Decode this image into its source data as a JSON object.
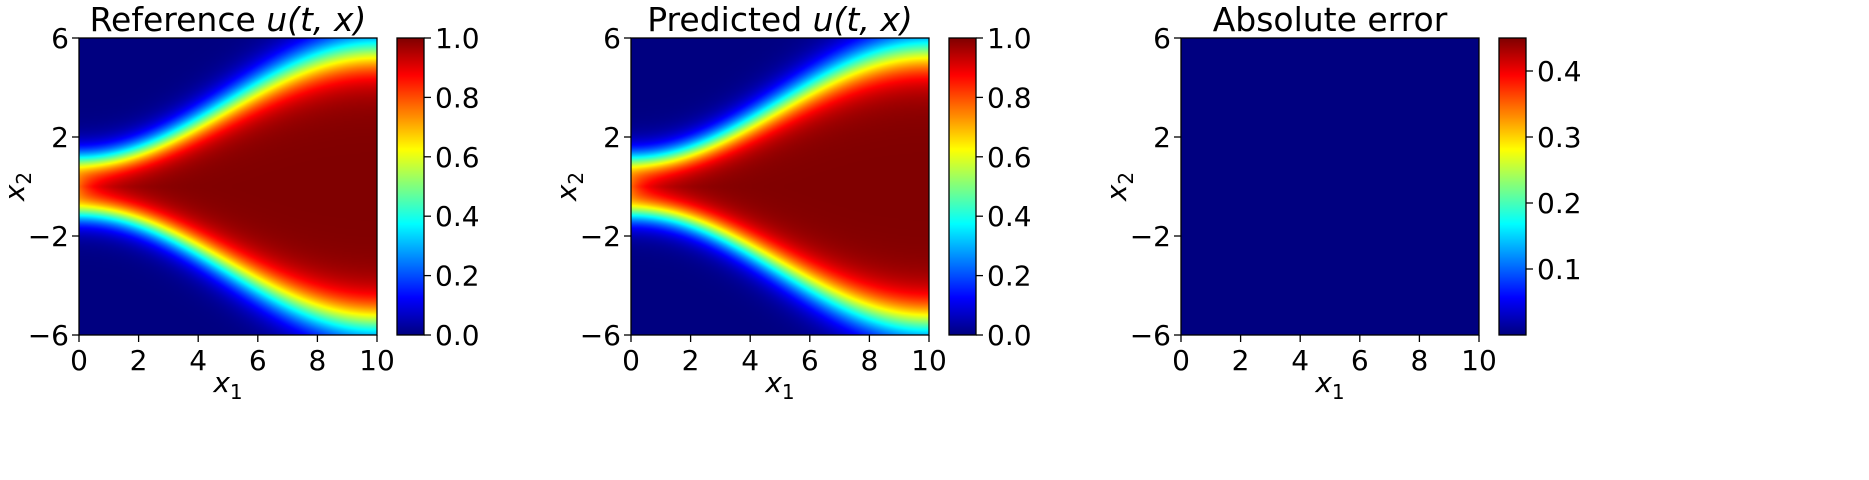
{
  "colormap": "jet",
  "chart_data": [
    {
      "type": "heatmap",
      "title": "Reference u(t, x)",
      "title_plain": "Reference ",
      "title_math": "u(t, x)",
      "xlabel": "x1",
      "ylabel": "x2",
      "xlim": [
        0,
        10
      ],
      "ylim": [
        -6,
        6
      ],
      "xticks": [
        "0",
        "2",
        "4",
        "6",
        "8",
        "10"
      ],
      "yticks": [
        "6",
        "2",
        "−2",
        "−6"
      ],
      "colorbar": {
        "range": [
          0.0,
          1.0
        ],
        "ticks": [
          "0.0",
          "0.2",
          "0.4",
          "0.6",
          "0.8",
          "1.0"
        ]
      },
      "field": "solution"
    },
    {
      "type": "heatmap",
      "title": "Predicted u(t, x)",
      "title_plain": "Predicted ",
      "title_math": "u(t, x)",
      "xlabel": "x1",
      "ylabel": "x2",
      "xlim": [
        0,
        10
      ],
      "ylim": [
        -6,
        6
      ],
      "xticks": [
        "0",
        "2",
        "4",
        "6",
        "8",
        "10"
      ],
      "yticks": [
        "6",
        "2",
        "−2",
        "−6"
      ],
      "colorbar": {
        "range": [
          0.0,
          1.0
        ],
        "ticks": [
          "0.0",
          "0.2",
          "0.4",
          "0.6",
          "0.8",
          "1.0"
        ]
      },
      "field": "solution"
    },
    {
      "type": "heatmap",
      "title": "Absolute error",
      "title_plain": "Absolute error",
      "title_math": "",
      "xlabel": "x1",
      "ylabel": "x2",
      "xlim": [
        0,
        10
      ],
      "ylim": [
        -6,
        6
      ],
      "xticks": [
        "0",
        "2",
        "4",
        "6",
        "8",
        "10"
      ],
      "yticks": [
        "6",
        "2",
        "−2",
        "−6"
      ],
      "colorbar": {
        "range": [
          0.0,
          0.45
        ],
        "ticks": [
          "0.1",
          "0.2",
          "0.3",
          "0.4"
        ]
      },
      "field": "error"
    }
  ]
}
